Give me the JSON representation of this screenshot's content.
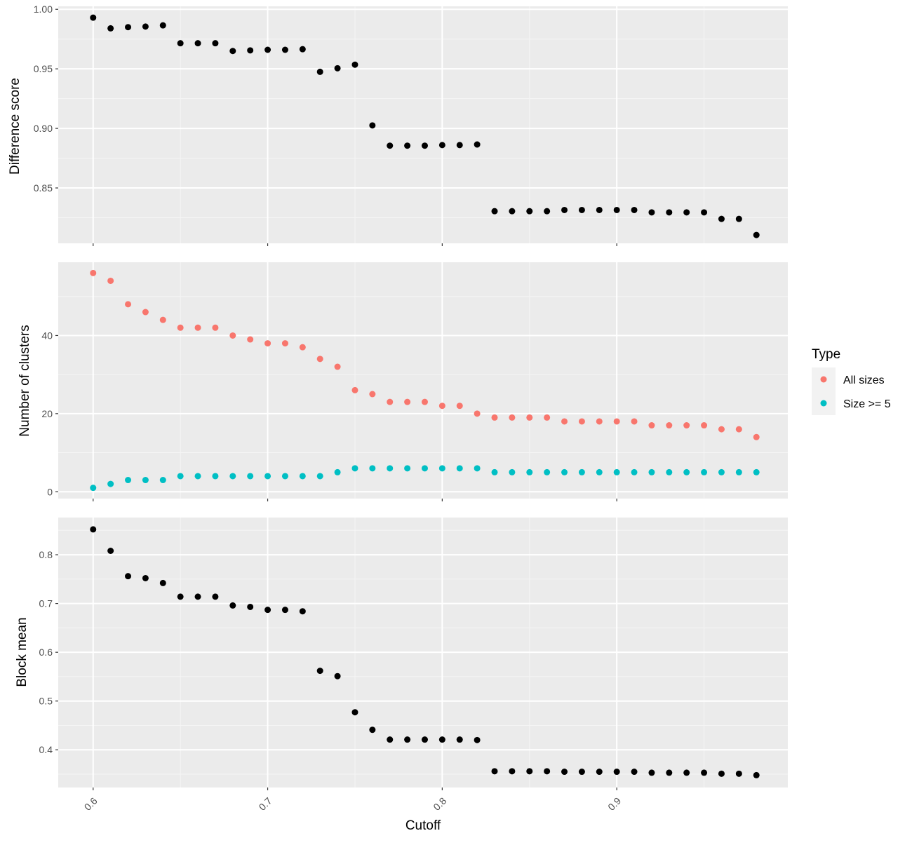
{
  "colors": {
    "panel_bg": "#EBEBEB",
    "grid_major": "#FFFFFF",
    "grid_minor": "#F5F5F5",
    "point_default": "#000000",
    "all_sizes": "#F8766D",
    "size_ge_5": "#00BFC4"
  },
  "legend": {
    "title": "Type",
    "entries": [
      "All sizes",
      "Size >= 5"
    ]
  },
  "chart_data": [
    {
      "type": "scatter",
      "panel": "top",
      "ylabel": "Difference score",
      "xlim": [
        0.58,
        0.998
      ],
      "ylim": [
        0.8035,
        1.0025
      ],
      "x_ticks": [
        0.6,
        0.7,
        0.8,
        0.9
      ],
      "y_ticks": [
        0.85,
        0.9,
        0.95,
        1.0
      ],
      "y_tick_labels": [
        "0.85",
        "0.90",
        "0.95",
        "1.00"
      ],
      "x": [
        0.6,
        0.61,
        0.62,
        0.63,
        0.64,
        0.65,
        0.66,
        0.67,
        0.68,
        0.69,
        0.7,
        0.71,
        0.72,
        0.73,
        0.74,
        0.75,
        0.76,
        0.77,
        0.78,
        0.79,
        0.8,
        0.81,
        0.82,
        0.83,
        0.84,
        0.85,
        0.86,
        0.87,
        0.88,
        0.89,
        0.9,
        0.91,
        0.92,
        0.93,
        0.94,
        0.95,
        0.96,
        0.97,
        0.98
      ],
      "series": [
        {
          "values": [
            0.993,
            0.984,
            0.985,
            0.9855,
            0.9865,
            0.9715,
            0.9715,
            0.9715,
            0.965,
            0.9655,
            0.966,
            0.966,
            0.9665,
            0.9475,
            0.9505,
            0.9535,
            0.9025,
            0.8855,
            0.8855,
            0.8855,
            0.886,
            0.886,
            0.8865,
            0.8305,
            0.8305,
            0.8305,
            0.8305,
            0.8315,
            0.8315,
            0.8315,
            0.8315,
            0.8315,
            0.8295,
            0.8295,
            0.8295,
            0.8295,
            0.824,
            0.824,
            0.8105
          ]
        }
      ]
    },
    {
      "type": "scatter",
      "panel": "middle",
      "ylabel": "Number of clusters",
      "xlim": [
        0.58,
        0.998
      ],
      "ylim": [
        -1.75,
        58.75
      ],
      "x_ticks": [
        0.6,
        0.7,
        0.8,
        0.9
      ],
      "y_ticks": [
        0,
        20,
        40
      ],
      "y_tick_labels": [
        "0",
        "20",
        "40"
      ],
      "x": [
        0.6,
        0.61,
        0.62,
        0.63,
        0.64,
        0.65,
        0.66,
        0.67,
        0.68,
        0.69,
        0.7,
        0.71,
        0.72,
        0.73,
        0.74,
        0.75,
        0.76,
        0.77,
        0.78,
        0.79,
        0.8,
        0.81,
        0.82,
        0.83,
        0.84,
        0.85,
        0.86,
        0.87,
        0.88,
        0.89,
        0.9,
        0.91,
        0.92,
        0.93,
        0.94,
        0.95,
        0.96,
        0.97,
        0.98
      ],
      "series": [
        {
          "name": "All sizes",
          "values": [
            56,
            54,
            48,
            46,
            44,
            42,
            42,
            42,
            40,
            39,
            38,
            38,
            37,
            34,
            32,
            26,
            25,
            23,
            23,
            23,
            22,
            22,
            20,
            19,
            19,
            19,
            19,
            18,
            18,
            18,
            18,
            18,
            17,
            17,
            17,
            17,
            16,
            16,
            14
          ]
        },
        {
          "name": "Size >= 5",
          "values": [
            1,
            2,
            3,
            3,
            3,
            4,
            4,
            4,
            4,
            4,
            4,
            4,
            4,
            4,
            5,
            6,
            6,
            6,
            6,
            6,
            6,
            6,
            6,
            5,
            5,
            5,
            5,
            5,
            5,
            5,
            5,
            5,
            5,
            5,
            5,
            5,
            5,
            5,
            5
          ]
        }
      ]
    },
    {
      "type": "scatter",
      "panel": "bottom",
      "ylabel": "Block mean",
      "xlabel": "Cutoff",
      "xlim": [
        0.58,
        0.998
      ],
      "ylim": [
        0.3227,
        0.8763
      ],
      "x_ticks": [
        0.6,
        0.7,
        0.8,
        0.9
      ],
      "x_tick_labels": [
        "0.6",
        "0.7",
        "0.8",
        "0.9"
      ],
      "y_ticks": [
        0.4,
        0.5,
        0.6,
        0.7,
        0.8
      ],
      "y_tick_labels": [
        "0.4",
        "0.5",
        "0.6",
        "0.7",
        "0.8"
      ],
      "x": [
        0.6,
        0.61,
        0.62,
        0.63,
        0.64,
        0.65,
        0.66,
        0.67,
        0.68,
        0.69,
        0.7,
        0.71,
        0.72,
        0.73,
        0.74,
        0.75,
        0.76,
        0.77,
        0.78,
        0.79,
        0.8,
        0.81,
        0.82,
        0.83,
        0.84,
        0.85,
        0.86,
        0.87,
        0.88,
        0.89,
        0.9,
        0.91,
        0.92,
        0.93,
        0.94,
        0.95,
        0.96,
        0.97,
        0.98
      ],
      "series": [
        {
          "values": [
            0.852,
            0.808,
            0.756,
            0.752,
            0.742,
            0.714,
            0.714,
            0.714,
            0.696,
            0.693,
            0.687,
            0.687,
            0.684,
            0.562,
            0.551,
            0.477,
            0.441,
            0.421,
            0.421,
            0.421,
            0.421,
            0.421,
            0.42,
            0.356,
            0.356,
            0.356,
            0.356,
            0.355,
            0.355,
            0.355,
            0.355,
            0.355,
            0.353,
            0.353,
            0.353,
            0.353,
            0.351,
            0.351,
            0.348
          ]
        }
      ]
    }
  ]
}
